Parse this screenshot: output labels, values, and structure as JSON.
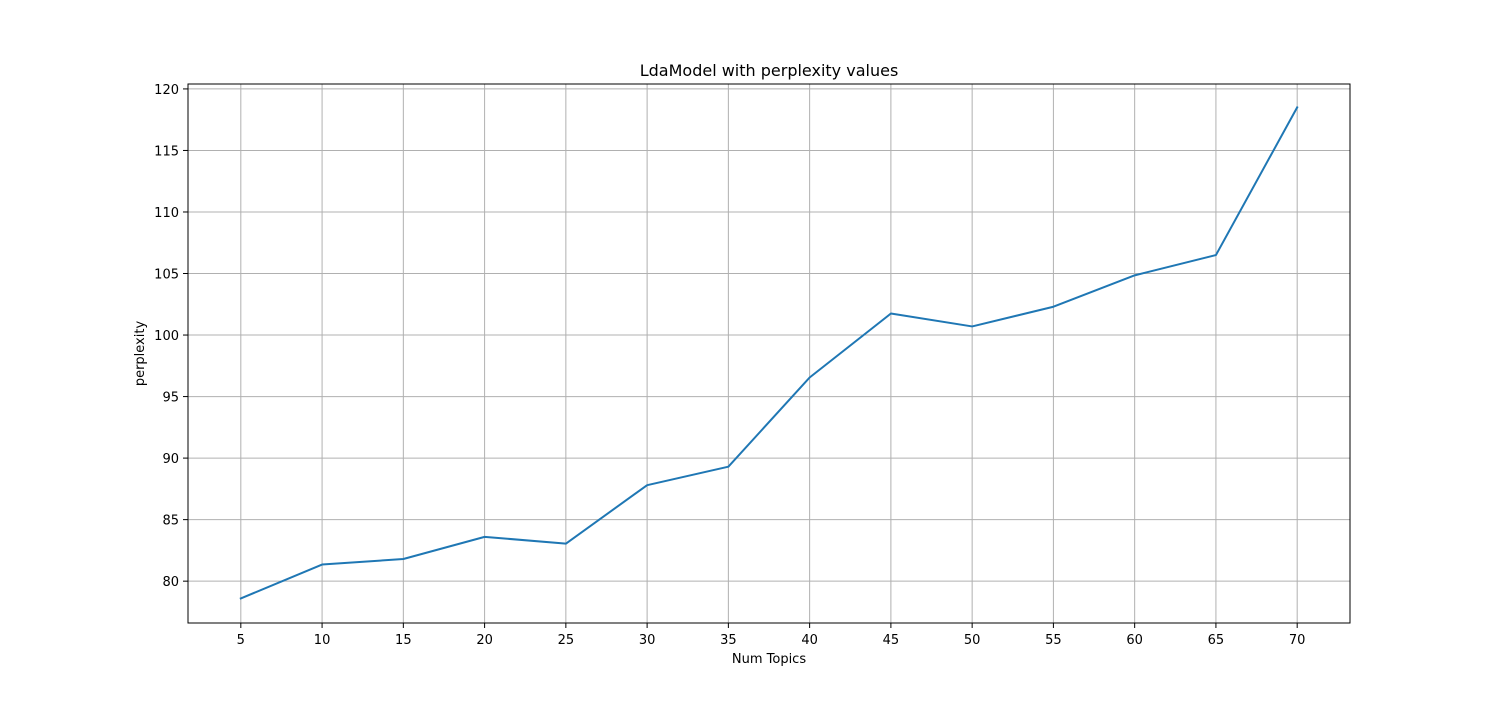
{
  "chart_data": {
    "type": "line",
    "title": "LdaModel with perplexity values",
    "xlabel": "Num Topics",
    "ylabel": "perplexity",
    "x": [
      5,
      10,
      15,
      20,
      25,
      30,
      35,
      40,
      45,
      50,
      55,
      60,
      65,
      70
    ],
    "series": [
      {
        "values": [
          78.6,
          81.35,
          81.8,
          83.6,
          83.05,
          87.8,
          89.3,
          96.55,
          101.75,
          100.7,
          102.3,
          104.85,
          106.5,
          118.5
        ]
      }
    ],
    "xticks": [
      "5",
      "10",
      "15",
      "20",
      "25",
      "30",
      "35",
      "40",
      "45",
      "50",
      "55",
      "60",
      "65",
      "70"
    ],
    "yticks": [
      "80",
      "85",
      "90",
      "95",
      "100",
      "105",
      "110",
      "115",
      "120"
    ],
    "xlim": [
      1.75,
      73.25
    ],
    "ylim": [
      76.6,
      120.4
    ],
    "grid": true,
    "line_color": "#1f77b4",
    "grid_color": "#b0b0b0"
  }
}
